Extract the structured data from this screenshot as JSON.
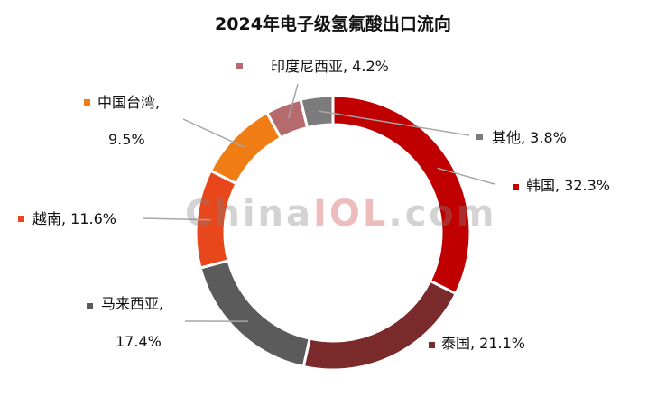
{
  "chart_data": {
    "type": "pie",
    "style": "donut",
    "title": "2024年电子级氢氟酸出口流向",
    "unit": "%",
    "slices": [
      {
        "name": "韩国",
        "value": 32.3,
        "color": "#c00000",
        "label_line1": "韩国, 32.3%",
        "label_line2": ""
      },
      {
        "name": "泰国",
        "value": 21.1,
        "color": "#7a2a2a",
        "label_line1": "泰国, 21.1%",
        "label_line2": ""
      },
      {
        "name": "马来西亚",
        "value": 17.4,
        "color": "#5b5b5b",
        "label_line1": "马来西亚,",
        "label_line2": "17.4%"
      },
      {
        "name": "越南",
        "value": 11.6,
        "color": "#e8471b",
        "label_line1": "越南, 11.6%",
        "label_line2": ""
      },
      {
        "name": "中国台湾",
        "value": 9.5,
        "color": "#f07d14",
        "label_line1": "中国台湾,",
        "label_line2": "9.5%"
      },
      {
        "name": "印度尼西亚",
        "value": 4.2,
        "color": "#b56b6e",
        "label_line1": "印度尼西亚, 4.2%",
        "label_line2": ""
      },
      {
        "name": "其他",
        "value": 3.8,
        "color": "#7b7b7b",
        "label_line1": "其他, 3.8%",
        "label_line2": ""
      }
    ]
  },
  "watermark": {
    "part1": "China",
    "part2": "IOL",
    "part3": ".com"
  }
}
